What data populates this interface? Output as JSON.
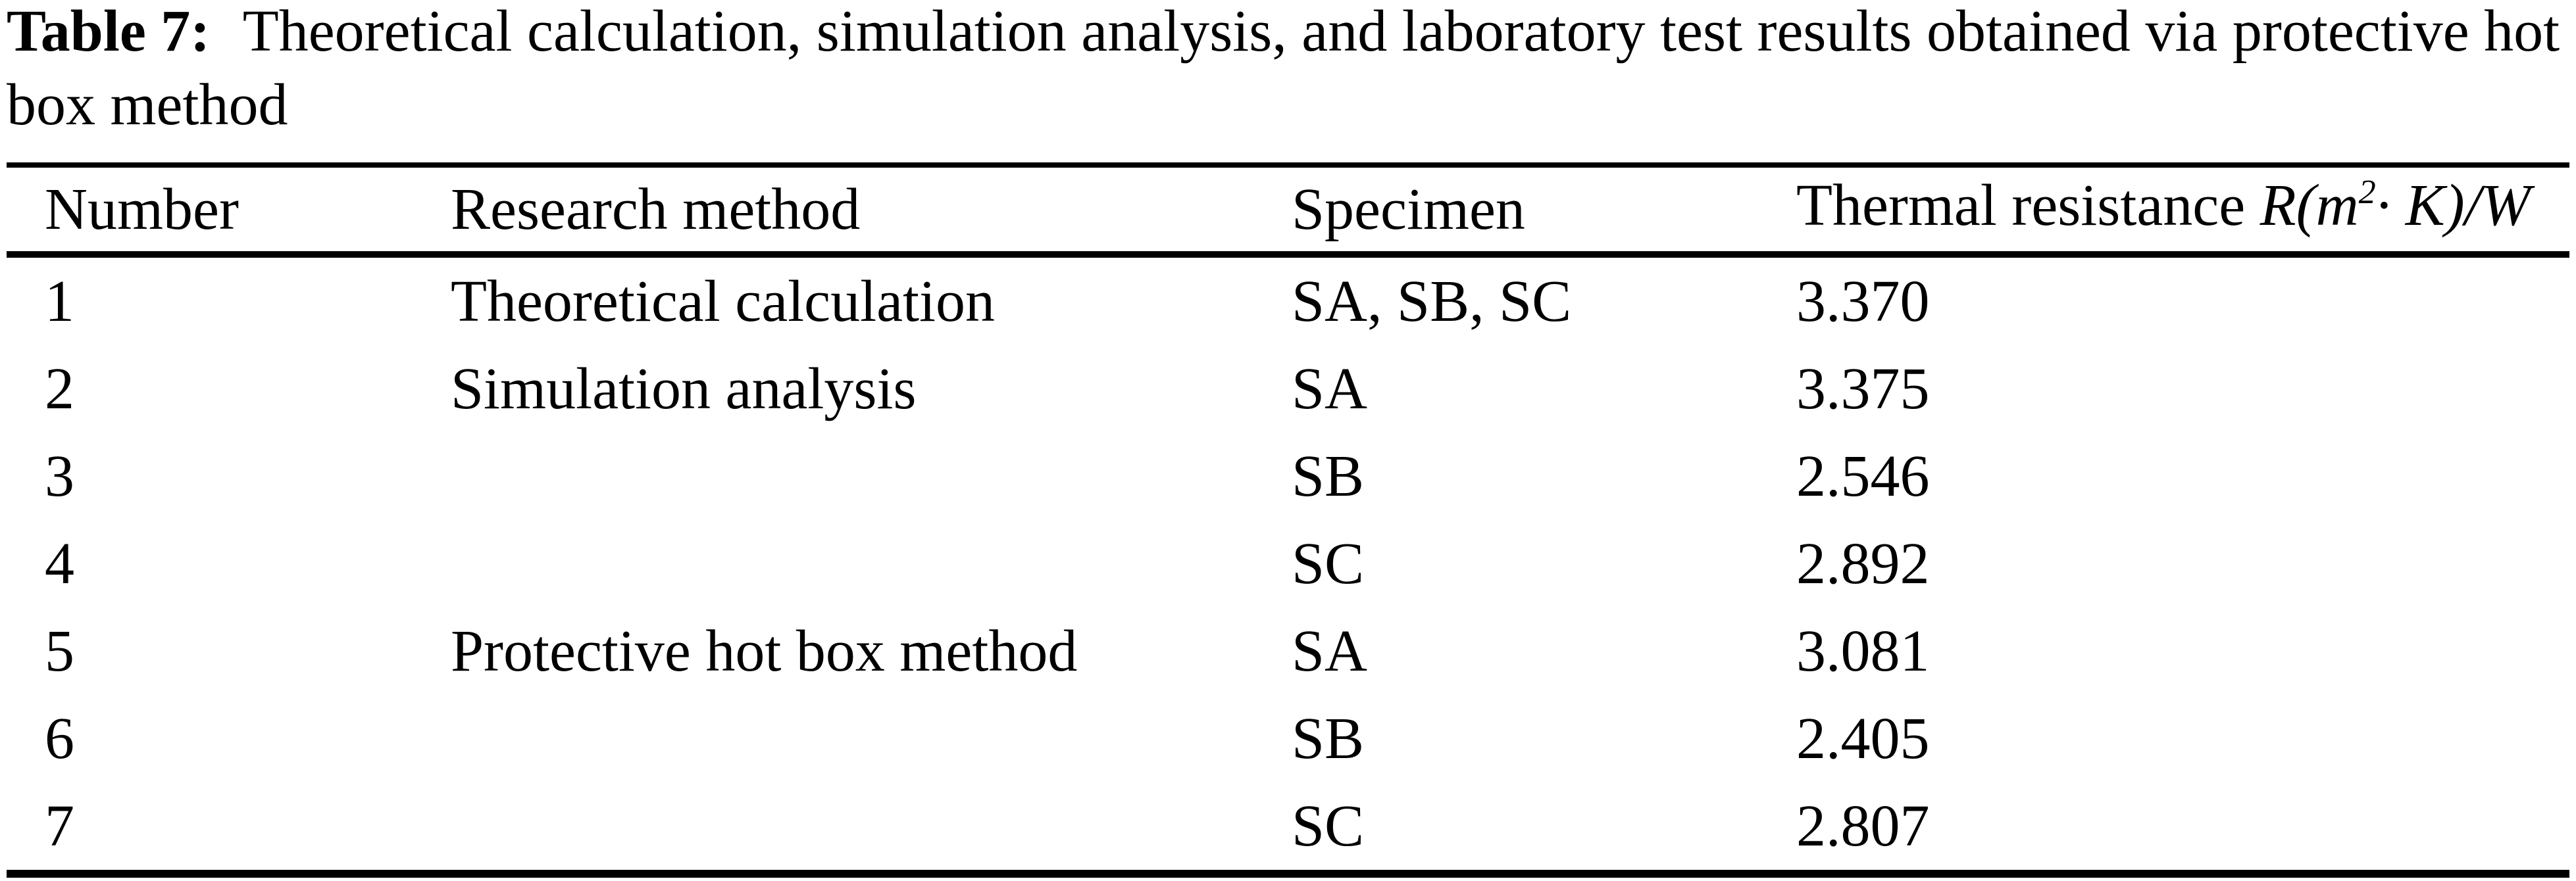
{
  "caption": {
    "label": "Table 7:",
    "line1": "Theoretical calculation, simulation analysis, and laboratory test results obtained via protective hot",
    "line2": "box method"
  },
  "table": {
    "headers": {
      "number": "Number",
      "method": "Research method",
      "specimen": "Specimen",
      "resistance_prefix": "Thermal resistance ",
      "resistance_math_base": "R(m",
      "resistance_math_sup": "2",
      "resistance_math_rest": "· K)/W"
    },
    "rows": [
      {
        "number": "1",
        "method": "Theoretical calculation",
        "specimen": "SA, SB, SC",
        "resistance": "3.370"
      },
      {
        "number": "2",
        "method": "Simulation analysis",
        "specimen": "SA",
        "resistance": "3.375"
      },
      {
        "number": "3",
        "method": "",
        "specimen": "SB",
        "resistance": "2.546"
      },
      {
        "number": "4",
        "method": "",
        "specimen": "SC",
        "resistance": "2.892"
      },
      {
        "number": "5",
        "method": "Protective hot box method",
        "specimen": "SA",
        "resistance": "3.081"
      },
      {
        "number": "6",
        "method": "",
        "specimen": "SB",
        "resistance": "2.405"
      },
      {
        "number": "7",
        "method": "",
        "specimen": "SC",
        "resistance": "2.807"
      }
    ]
  },
  "colors": {
    "text": "#000000",
    "background": "#ffffff",
    "rule": "#000000"
  }
}
